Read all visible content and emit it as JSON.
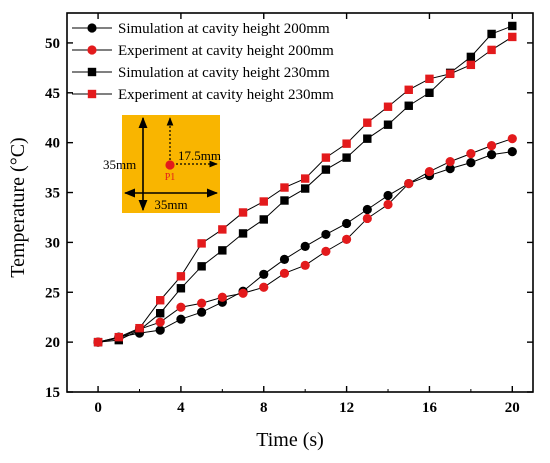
{
  "chart_data": {
    "type": "line",
    "xlabel": "Time (s)",
    "ylabel": "Temperature (°C)",
    "xlim": [
      -1.5,
      21
    ],
    "ylim": [
      15,
      53
    ],
    "xticks": [
      0,
      4,
      8,
      12,
      16,
      20
    ],
    "yticks": [
      15,
      20,
      25,
      30,
      35,
      40,
      45,
      50
    ],
    "grid": false,
    "legend_position": "top-left",
    "x": [
      0,
      1,
      2,
      3,
      4,
      5,
      6,
      7,
      8,
      9,
      10,
      11,
      12,
      13,
      14,
      15,
      16,
      17,
      18,
      19,
      20
    ],
    "series": [
      {
        "name": "Simulation at cavity height 200mm",
        "marker": "circle",
        "color": "#000000",
        "values": [
          20.0,
          20.5,
          20.9,
          21.2,
          22.3,
          23.0,
          24.0,
          25.1,
          26.8,
          28.3,
          29.6,
          30.8,
          31.9,
          33.3,
          34.7,
          35.9,
          36.7,
          37.4,
          38.0,
          38.8,
          39.1
        ]
      },
      {
        "name": "Experiment at cavity height 200mm",
        "marker": "circle",
        "color": "#e31a1c",
        "values": [
          20.0,
          20.4,
          21.3,
          22.0,
          23.5,
          23.9,
          24.5,
          24.9,
          25.5,
          26.9,
          27.7,
          29.1,
          30.3,
          32.4,
          33.8,
          35.9,
          37.1,
          38.1,
          38.9,
          39.7,
          40.4
        ]
      },
      {
        "name": "Simulation at cavity height 230mm",
        "marker": "square",
        "color": "#000000",
        "values": [
          20.0,
          20.2,
          21.2,
          22.9,
          25.4,
          27.6,
          29.2,
          30.9,
          32.3,
          34.2,
          35.4,
          37.3,
          38.5,
          40.4,
          41.8,
          43.7,
          45.0,
          47.0,
          48.6,
          50.9,
          51.7
        ]
      },
      {
        "name": "Experiment at cavity height 230mm",
        "marker": "square",
        "color": "#e31a1c",
        "values": [
          20.0,
          20.5,
          21.4,
          24.2,
          26.6,
          29.9,
          31.3,
          33.0,
          34.1,
          35.5,
          36.4,
          38.5,
          39.9,
          42.0,
          43.6,
          45.3,
          46.4,
          46.9,
          47.8,
          49.3,
          50.6
        ]
      }
    ],
    "inset": {
      "width_label": "35mm",
      "height_label": "35mm",
      "offset_label": "17.5mm",
      "point_label": "P1",
      "fill_color": "#f9b500",
      "point_color": "#e31a1c"
    }
  }
}
